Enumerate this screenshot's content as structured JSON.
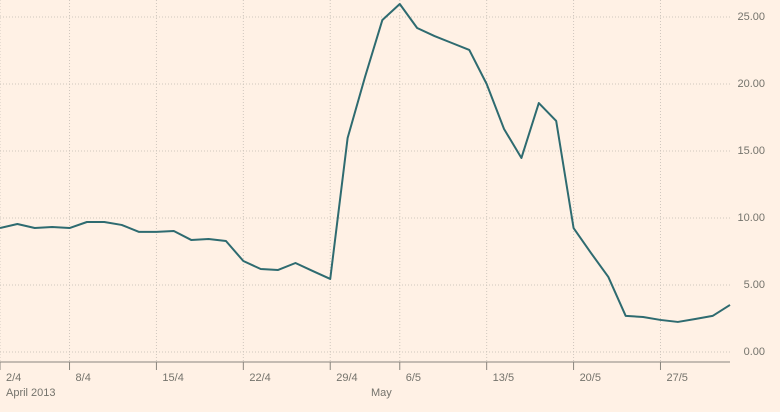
{
  "chart_data": {
    "type": "line",
    "categories": [
      "2/4",
      null,
      null,
      null,
      "8/4",
      null,
      null,
      null,
      null,
      "15/4",
      null,
      null,
      null,
      null,
      "22/4",
      null,
      null,
      null,
      null,
      "29/4",
      null,
      null,
      null,
      "6/5",
      null,
      null,
      null,
      null,
      "13/5",
      null,
      null,
      null,
      null,
      "20/5",
      null,
      null,
      null,
      null,
      "27/5",
      null,
      null,
      null,
      null
    ],
    "x_group_labels": [
      "April 2013",
      "May"
    ],
    "series": [
      {
        "name": null,
        "color": "#2e6b70",
        "values": [
          9.25,
          9.55,
          9.25,
          9.33,
          9.25,
          9.7,
          9.7,
          9.48,
          8.96,
          8.96,
          9.03,
          8.36,
          8.43,
          8.28,
          6.79,
          6.19,
          6.12,
          6.64,
          6.04,
          5.45,
          15.97,
          20.52,
          24.78,
          25.97,
          24.18,
          23.58,
          23.06,
          22.54,
          20.0,
          16.64,
          14.48,
          18.58,
          17.24,
          9.25,
          7.39,
          5.6,
          2.69,
          2.61,
          2.39,
          2.24,
          2.46,
          2.69,
          3.51
        ]
      }
    ],
    "ylim": [
      -0.75,
      26.27
    ],
    "yticks": [
      {
        "value": 0,
        "label": "0.00"
      },
      {
        "value": 5,
        "label": "5.00"
      },
      {
        "value": 10,
        "label": "10.00"
      },
      {
        "value": 15,
        "label": "15.00"
      },
      {
        "value": 20,
        "label": "20.00"
      },
      {
        "value": 25,
        "label": "25.00"
      }
    ],
    "grid": true
  }
}
